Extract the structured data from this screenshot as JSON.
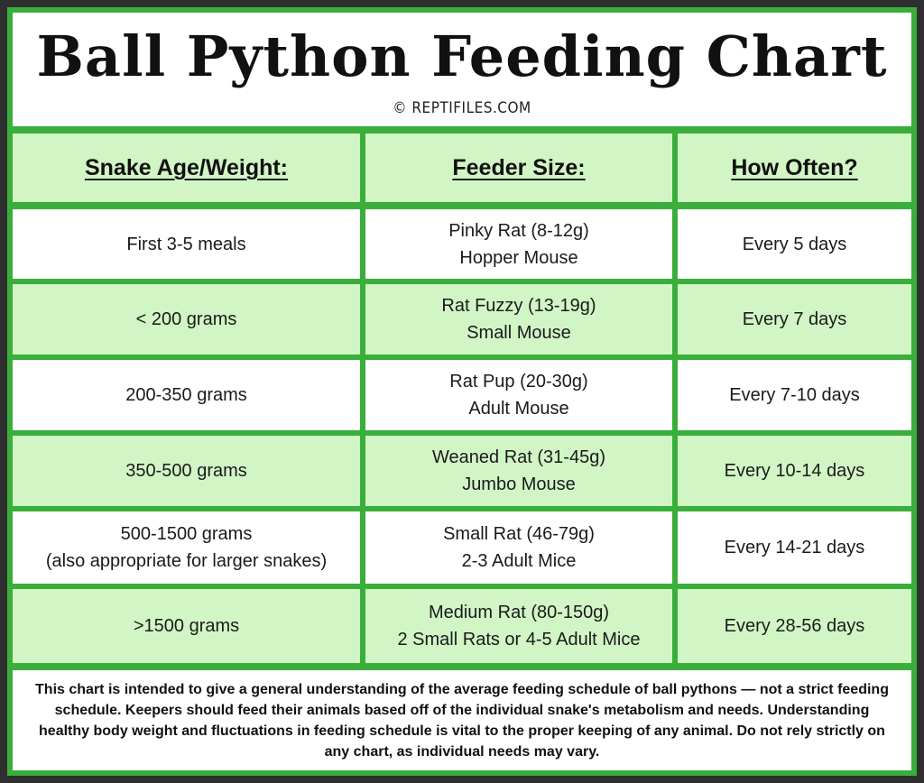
{
  "header": {
    "title": "Ball Python Feeding Chart",
    "credit": "© REPTIFILES.COM"
  },
  "table": {
    "columns": [
      "Snake Age/Weight:",
      "Feeder Size:",
      "How Often?"
    ],
    "rows": [
      {
        "age": [
          "First 3-5 meals"
        ],
        "feeder": [
          "Pinky Rat (8-12g)",
          "Hopper Mouse"
        ],
        "frequency": "Every 5 days"
      },
      {
        "age": [
          "< 200 grams"
        ],
        "feeder": [
          "Rat Fuzzy (13-19g)",
          "Small Mouse"
        ],
        "frequency": "Every 7 days"
      },
      {
        "age": [
          "200-350 grams"
        ],
        "feeder": [
          "Rat Pup (20-30g)",
          "Adult Mouse"
        ],
        "frequency": "Every 7-10 days"
      },
      {
        "age": [
          "350-500 grams"
        ],
        "feeder": [
          "Weaned Rat (31-45g)",
          "Jumbo Mouse"
        ],
        "frequency": "Every 10-14 days"
      },
      {
        "age": [
          "500-1500 grams",
          "(also appropriate for larger snakes)"
        ],
        "feeder": [
          "Small Rat (46-79g)",
          "2-3 Adult Mice"
        ],
        "frequency": "Every 14-21 days"
      },
      {
        "age": [
          ">1500 grams"
        ],
        "feeder": [
          "Medium Rat (80-150g)",
          "2 Small Rats or 4-5 Adult Mice"
        ],
        "frequency": "Every 28-56 days"
      }
    ]
  },
  "footer": {
    "disclaimer": "This chart is intended to give a general understanding of the average feeding schedule of ball pythons — not a strict feeding schedule. Keepers should feed their animals based off of the individual snake's metabolism and needs. Understanding healthy body weight and fluctuations in feeding schedule is vital to the proper keeping of any animal. Do not rely strictly on any chart, as individual needs may vary."
  },
  "colors": {
    "border_green": "#3aae3a",
    "cell_green": "#d2f5c6",
    "cell_white": "#ffffff"
  }
}
